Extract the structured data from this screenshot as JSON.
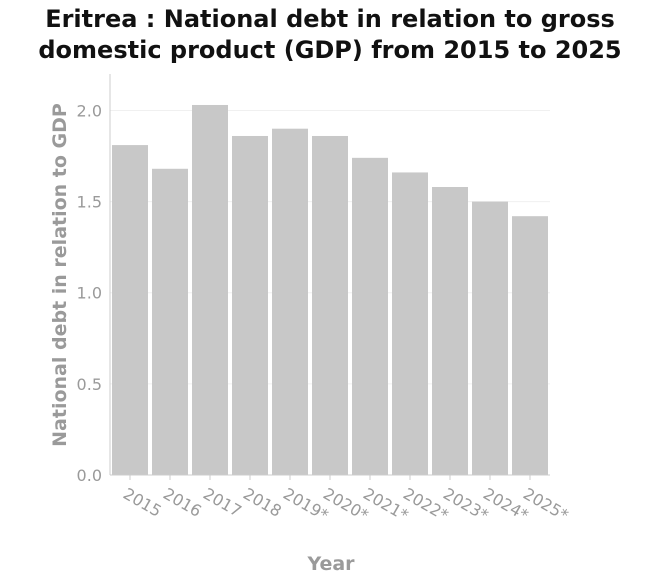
{
  "chart_data": {
    "type": "bar",
    "title_line1": "Eritrea : National debt in relation to gross",
    "title_line2": "domestic product (GDP) from 2015 to 2025",
    "xlabel": "Year",
    "ylabel": "National debt in relation to GDP",
    "categories": [
      "2015",
      "2016",
      "2017",
      "2018",
      "2019*",
      "2020*",
      "2021*",
      "2022*",
      "2023*",
      "2024*",
      "2025*"
    ],
    "values": [
      1.81,
      1.68,
      2.03,
      1.86,
      1.9,
      1.86,
      1.74,
      1.66,
      1.58,
      1.5,
      1.42
    ],
    "yticks": [
      "0.0",
      "0.5",
      "1.0",
      "1.5",
      "2.0"
    ],
    "ylim": [
      0,
      2.2
    ],
    "grid": true,
    "bar_color": "#c8c8c8",
    "grid_color": "#f0f0f0",
    "axis_color": "#cccccc"
  }
}
